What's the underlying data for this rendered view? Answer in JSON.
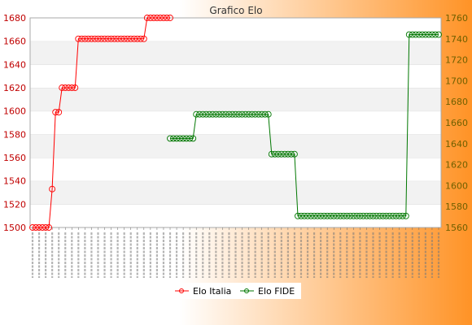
{
  "chart_data": {
    "type": "line",
    "title": "Grafico Elo",
    "xlabel": "",
    "ylabel_left": "",
    "ylabel_right": "",
    "ylim_left": [
      1500,
      1680
    ],
    "ylim_right": [
      1560,
      1760
    ],
    "yticks_left": [
      1500,
      1520,
      1540,
      1560,
      1580,
      1600,
      1620,
      1640,
      1660,
      1680
    ],
    "yticks_right": [
      1560,
      1580,
      1600,
      1620,
      1640,
      1660,
      1680,
      1700,
      1720,
      1740,
      1760
    ],
    "x_count": 125,
    "legend_position": "bottom",
    "grid": true,
    "series": [
      {
        "name": "Elo Italia",
        "axis": "left",
        "color": "#ff0000",
        "segments": [
          {
            "from": 0,
            "to": 5,
            "value": 1500
          },
          {
            "from": 6,
            "to": 6,
            "value": 1533
          },
          {
            "from": 7,
            "to": 8,
            "value": 1599
          },
          {
            "from": 9,
            "to": 13,
            "value": 1620
          },
          {
            "from": 14,
            "to": 34,
            "value": 1662
          },
          {
            "from": 35,
            "to": 42,
            "value": 1680
          }
        ]
      },
      {
        "name": "Elo FIDE",
        "axis": "right",
        "color": "#007700",
        "segments": [
          {
            "from": 42,
            "to": 49,
            "value": 1645
          },
          {
            "from": 50,
            "to": 72,
            "value": 1668
          },
          {
            "from": 73,
            "to": 80,
            "value": 1630
          },
          {
            "from": 81,
            "to": 114,
            "value": 1571
          },
          {
            "from": 115,
            "to": 124,
            "value": 1744
          }
        ]
      }
    ]
  }
}
